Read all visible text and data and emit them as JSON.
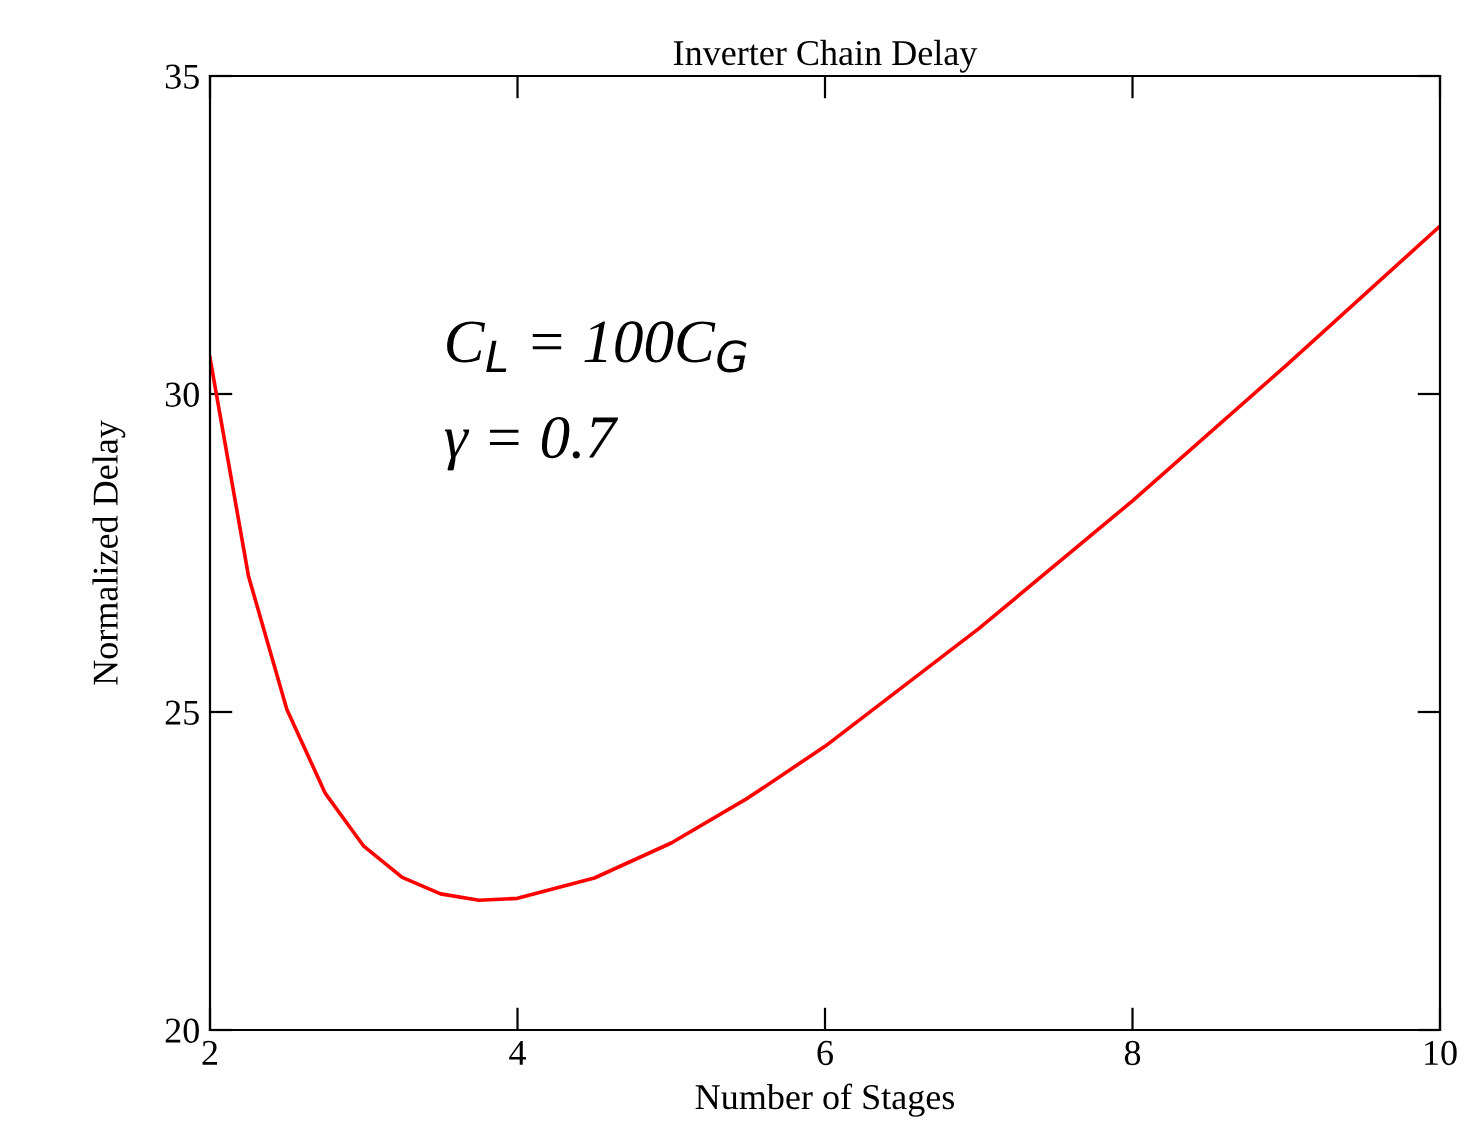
{
  "chart_data": {
    "type": "line",
    "title": "Inverter Chain Delay",
    "xlabel": "Number of Stages",
    "ylabel": "Normalized Delay",
    "x": [
      2,
      2.25,
      2.5,
      2.75,
      3,
      3.25,
      3.5,
      3.75,
      4,
      4.5,
      5,
      5.5,
      6,
      7,
      8,
      9,
      10
    ],
    "series": [
      {
        "color": "#ff0000",
        "values": [
          30.57,
          27.14,
          25.04,
          23.72,
          22.89,
          22.4,
          22.14,
          22.04,
          22.07,
          22.39,
          22.94,
          23.65,
          24.46,
          26.31,
          28.32,
          30.45,
          32.64
        ]
      }
    ],
    "annotations": [
      "C$_{L}$ = 100C$_{G}$",
      "γ = 0.7"
    ],
    "xlim": [
      2,
      10
    ],
    "xticks": [
      2,
      4,
      6,
      8,
      10
    ],
    "ylim": [
      20,
      35
    ],
    "yticks": [
      20,
      25,
      30,
      35
    ],
    "grid": false,
    "legend": false,
    "marker": "none",
    "line_style": "solid"
  }
}
